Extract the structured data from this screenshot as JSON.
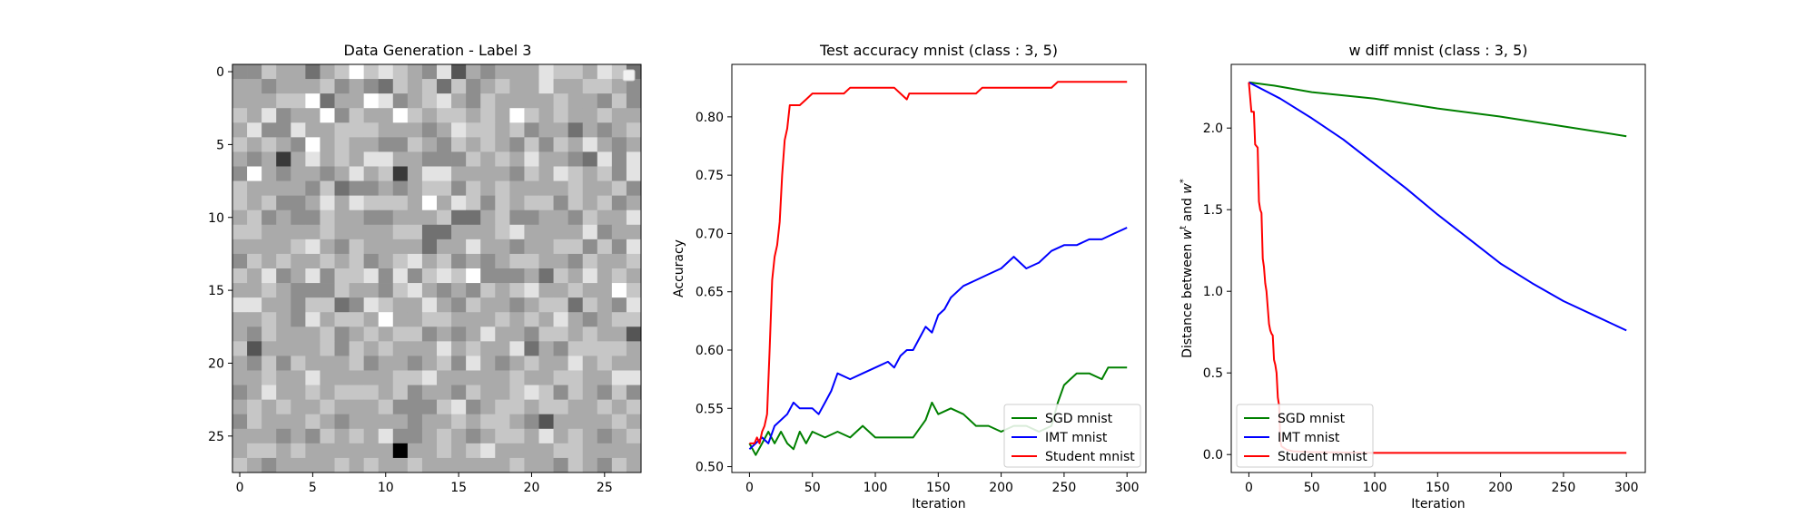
{
  "chart_data": [
    {
      "type": "heatmap",
      "title": "Data Generation - Label 3",
      "xlabel": "",
      "ylabel": "",
      "grid_size": 28,
      "colormap": "gray",
      "value_range": [
        0,
        1
      ],
      "xticks": [
        0,
        5,
        10,
        15,
        20,
        25
      ],
      "yticks": [
        0,
        5,
        10,
        15,
        20,
        25
      ],
      "pixel_rows": [
        "5576646797876583656668776874",
        "6656667565476747567668667765",
        "6667794669856786576666766575",
        "7685669576697677676976766766",
        "6855866777666568776756646567",
        "7676596766557657676575768656",
        "6562686768866555767686654858",
        "5965665686726886666576876758",
        "7666657455656775767666676675",
        "7675568687776968757677576756",
        "6756557665566674467556657668",
        "7766667666677446667866668566",
        "6666786576666466866566775758",
        "5767667675678675656776657667",
        "7685685778585787955564768676",
        "6676555766578656576786676697",
        "8866577458766865766567747658",
        "6676586776966776667676865677",
        "6576667567677565686657767663",
        "7366667576766686766846577776",
        "6575766675665675865676686766",
        "6676686666677866666766776688",
        "5686676777675665766787576575",
        "6767667666755578567767766767",
        "5766676566665667677653666676",
        "6665657676855676567768676567",
        "6776766666606676786666776666",
        "7656666767667666666766576576"
      ]
    },
    {
      "type": "line",
      "title": "Test accuracy mnist (class : 3, 5)",
      "xlabel": "Iteration",
      "ylabel": "Accuracy",
      "xlim": [
        -14,
        315
      ],
      "ylim": [
        0.495,
        0.845
      ],
      "xticks": [
        0,
        50,
        100,
        150,
        200,
        250,
        300
      ],
      "yticks": [
        0.5,
        0.55,
        0.6,
        0.65,
        0.7,
        0.75,
        0.8
      ],
      "legend_position": "lower right",
      "series": [
        {
          "name": "SGD mnist",
          "color": "#008000",
          "points": [
            [
              0,
              0.52
            ],
            [
              5,
              0.51
            ],
            [
              10,
              0.52
            ],
            [
              15,
              0.53
            ],
            [
              20,
              0.52
            ],
            [
              25,
              0.53
            ],
            [
              30,
              0.52
            ],
            [
              35,
              0.515
            ],
            [
              40,
              0.53
            ],
            [
              45,
              0.52
            ],
            [
              50,
              0.53
            ],
            [
              60,
              0.525
            ],
            [
              70,
              0.53
            ],
            [
              80,
              0.525
            ],
            [
              90,
              0.535
            ],
            [
              100,
              0.525
            ],
            [
              110,
              0.525
            ],
            [
              120,
              0.525
            ],
            [
              130,
              0.525
            ],
            [
              140,
              0.54
            ],
            [
              145,
              0.555
            ],
            [
              150,
              0.545
            ],
            [
              160,
              0.55
            ],
            [
              170,
              0.545
            ],
            [
              180,
              0.535
            ],
            [
              190,
              0.535
            ],
            [
              200,
              0.53
            ],
            [
              210,
              0.535
            ],
            [
              220,
              0.535
            ],
            [
              230,
              0.53
            ],
            [
              240,
              0.535
            ],
            [
              245,
              0.555
            ],
            [
              250,
              0.57
            ],
            [
              255,
              0.575
            ],
            [
              260,
              0.58
            ],
            [
              270,
              0.58
            ],
            [
              280,
              0.575
            ],
            [
              285,
              0.585
            ],
            [
              300,
              0.585
            ]
          ]
        },
        {
          "name": "IMT mnist",
          "color": "#0000ff",
          "points": [
            [
              0,
              0.515
            ],
            [
              10,
              0.525
            ],
            [
              15,
              0.52
            ],
            [
              20,
              0.535
            ],
            [
              30,
              0.545
            ],
            [
              35,
              0.555
            ],
            [
              40,
              0.55
            ],
            [
              50,
              0.55
            ],
            [
              55,
              0.545
            ],
            [
              60,
              0.555
            ],
            [
              65,
              0.565
            ],
            [
              70,
              0.58
            ],
            [
              80,
              0.575
            ],
            [
              90,
              0.58
            ],
            [
              100,
              0.585
            ],
            [
              110,
              0.59
            ],
            [
              115,
              0.585
            ],
            [
              120,
              0.595
            ],
            [
              125,
              0.6
            ],
            [
              130,
              0.6
            ],
            [
              135,
              0.61
            ],
            [
              140,
              0.62
            ],
            [
              145,
              0.615
            ],
            [
              150,
              0.63
            ],
            [
              155,
              0.635
            ],
            [
              160,
              0.645
            ],
            [
              170,
              0.655
            ],
            [
              180,
              0.66
            ],
            [
              190,
              0.665
            ],
            [
              200,
              0.67
            ],
            [
              210,
              0.68
            ],
            [
              215,
              0.675
            ],
            [
              220,
              0.67
            ],
            [
              230,
              0.675
            ],
            [
              240,
              0.685
            ],
            [
              250,
              0.69
            ],
            [
              260,
              0.69
            ],
            [
              270,
              0.695
            ],
            [
              280,
              0.695
            ],
            [
              290,
              0.7
            ],
            [
              300,
              0.705
            ]
          ]
        },
        {
          "name": "Student mnist",
          "color": "#ff0000",
          "points": [
            [
              0,
              0.52
            ],
            [
              4,
              0.52
            ],
            [
              6,
              0.525
            ],
            [
              8,
              0.52
            ],
            [
              10,
              0.53
            ],
            [
              12,
              0.535
            ],
            [
              14,
              0.545
            ],
            [
              16,
              0.6
            ],
            [
              18,
              0.66
            ],
            [
              20,
              0.68
            ],
            [
              22,
              0.69
            ],
            [
              24,
              0.71
            ],
            [
              26,
              0.75
            ],
            [
              28,
              0.78
            ],
            [
              30,
              0.79
            ],
            [
              32,
              0.81
            ],
            [
              40,
              0.81
            ],
            [
              45,
              0.815
            ],
            [
              50,
              0.82
            ],
            [
              75,
              0.82
            ],
            [
              80,
              0.825
            ],
            [
              115,
              0.825
            ],
            [
              120,
              0.82
            ],
            [
              125,
              0.815
            ],
            [
              127,
              0.82
            ],
            [
              180,
              0.82
            ],
            [
              185,
              0.825
            ],
            [
              240,
              0.825
            ],
            [
              245,
              0.83
            ],
            [
              300,
              0.83
            ]
          ]
        }
      ]
    },
    {
      "type": "line",
      "title": "w diff mnist (class : 3, 5)",
      "xlabel": "Iteration",
      "ylabel": "Distance between w^t and w^*",
      "xlim": [
        -14,
        315
      ],
      "ylim": [
        -0.11,
        2.39
      ],
      "xticks": [
        0,
        50,
        100,
        150,
        200,
        250,
        300
      ],
      "yticks": [
        0.0,
        0.5,
        1.0,
        1.5,
        2.0
      ],
      "legend_position": "lower left",
      "series": [
        {
          "name": "SGD mnist",
          "color": "#008000",
          "points": [
            [
              0,
              2.28
            ],
            [
              20,
              2.26
            ],
            [
              50,
              2.22
            ],
            [
              100,
              2.18
            ],
            [
              150,
              2.12
            ],
            [
              200,
              2.07
            ],
            [
              250,
              2.01
            ],
            [
              300,
              1.95
            ]
          ]
        },
        {
          "name": "IMT mnist",
          "color": "#0000ff",
          "points": [
            [
              0,
              2.28
            ],
            [
              25,
              2.18
            ],
            [
              50,
              2.06
            ],
            [
              75,
              1.93
            ],
            [
              100,
              1.78
            ],
            [
              125,
              1.63
            ],
            [
              150,
              1.47
            ],
            [
              175,
              1.32
            ],
            [
              200,
              1.17
            ],
            [
              225,
              1.05
            ],
            [
              250,
              0.94
            ],
            [
              275,
              0.85
            ],
            [
              300,
              0.76
            ]
          ]
        },
        {
          "name": "Student mnist",
          "color": "#ff0000",
          "points": [
            [
              0,
              2.28
            ],
            [
              2,
              2.1
            ],
            [
              4,
              2.1
            ],
            [
              5,
              1.9
            ],
            [
              7,
              1.88
            ],
            [
              8,
              1.55
            ],
            [
              9,
              1.5
            ],
            [
              10,
              1.48
            ],
            [
              11,
              1.2
            ],
            [
              12,
              1.15
            ],
            [
              13,
              1.05
            ],
            [
              14,
              1.0
            ],
            [
              15,
              0.9
            ],
            [
              16,
              0.8
            ],
            [
              17,
              0.76
            ],
            [
              18,
              0.74
            ],
            [
              19,
              0.73
            ],
            [
              20,
              0.58
            ],
            [
              21,
              0.55
            ],
            [
              22,
              0.5
            ],
            [
              23,
              0.35
            ],
            [
              24,
              0.3
            ],
            [
              25,
              0.08
            ],
            [
              26,
              0.05
            ],
            [
              30,
              0.03
            ],
            [
              35,
              0.02
            ],
            [
              50,
              0.015
            ],
            [
              100,
              0.01
            ],
            [
              300,
              0.01
            ]
          ]
        }
      ]
    }
  ]
}
